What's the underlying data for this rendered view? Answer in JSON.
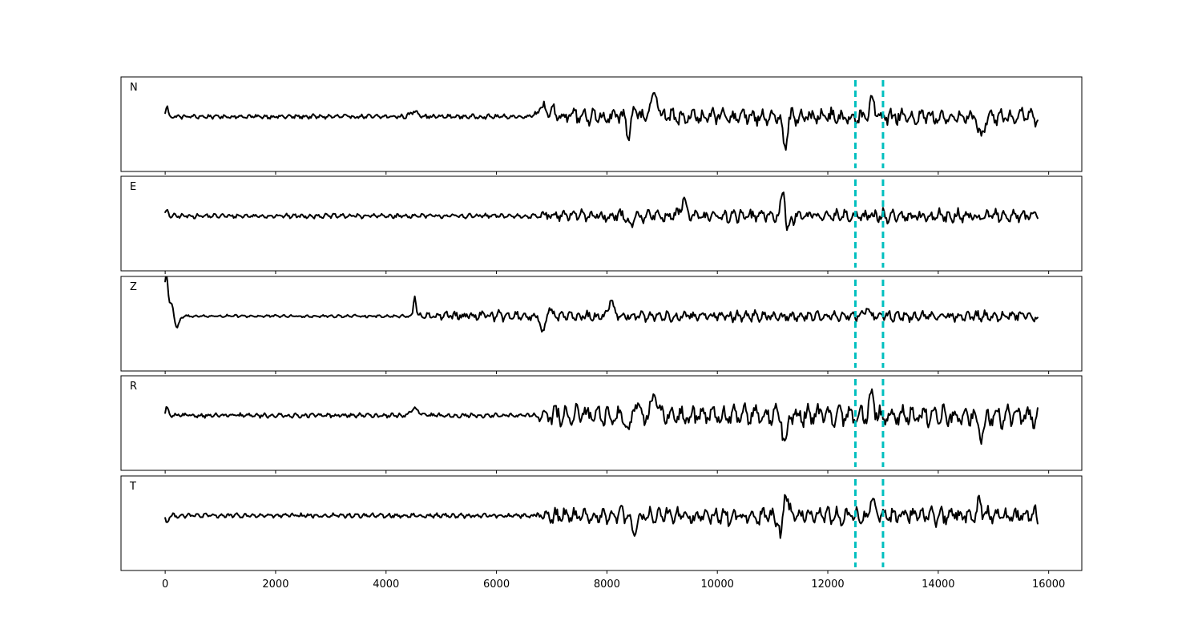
{
  "chart_data": {
    "type": "line",
    "title": "",
    "xlabel": "",
    "ylabel": "",
    "xlim": [
      -800,
      16600
    ],
    "x_ticks": [
      0,
      2000,
      4000,
      6000,
      8000,
      10000,
      12000,
      14000,
      16000
    ],
    "x_tick_labels": [
      "0",
      "2000",
      "4000",
      "6000",
      "8000",
      "10000",
      "12000",
      "14000",
      "16000"
    ],
    "sample_step": 20,
    "x_range": [
      0,
      15800
    ],
    "ylim": [
      -1,
      1
    ],
    "grid": false,
    "legend": "none",
    "trace_color": "#000000",
    "marker_color": "#00bfbf",
    "window_markers": [
      12500,
      13000
    ],
    "panels": [
      {
        "label": "N",
        "base_amplitude": 0.05,
        "events": [
          {
            "x": 30,
            "amp": 0.25,
            "width": 30
          },
          {
            "x": 4520,
            "amp": 0.12,
            "width": 100
          },
          {
            "x": 6850,
            "amp": 0.2,
            "width": 150
          },
          {
            "x": 8420,
            "amp": -0.55,
            "width": 80
          },
          {
            "x": 8480,
            "amp": 0.45,
            "width": 70
          },
          {
            "x": 8860,
            "amp": 0.55,
            "width": 80
          },
          {
            "x": 11220,
            "amp": -0.75,
            "width": 50
          },
          {
            "x": 12800,
            "amp": 0.45,
            "width": 60
          },
          {
            "x": 14780,
            "amp": -0.5,
            "width": 60
          }
        ],
        "bursts": [
          {
            "start": 6600,
            "end": 15800,
            "amp": 0.2,
            "period": 180
          }
        ]
      },
      {
        "label": "E",
        "base_amplitude": 0.05,
        "events": [
          {
            "x": 30,
            "amp": 0.1,
            "width": 40
          },
          {
            "x": 8420,
            "amp": -0.28,
            "width": 60
          },
          {
            "x": 9380,
            "amp": 0.3,
            "width": 80
          },
          {
            "x": 11200,
            "amp": 0.85,
            "width": 50
          },
          {
            "x": 11260,
            "amp": -0.55,
            "width": 60
          }
        ],
        "bursts": [
          {
            "start": 6600,
            "end": 15800,
            "amp": 0.15,
            "period": 170
          }
        ]
      },
      {
        "label": "Z",
        "base_amplitude": 0.03,
        "events": [
          {
            "x": 20,
            "amp": 1.0,
            "width": 40
          },
          {
            "x": 120,
            "amp": 0.35,
            "width": 60
          },
          {
            "x": 200,
            "amp": -0.3,
            "width": 70
          },
          {
            "x": 4520,
            "amp": 0.5,
            "width": 30
          },
          {
            "x": 6850,
            "amp": -0.4,
            "width": 70
          },
          {
            "x": 6950,
            "amp": 0.25,
            "width": 60
          },
          {
            "x": 8070,
            "amp": 0.35,
            "width": 60
          },
          {
            "x": 12700,
            "amp": 0.18,
            "width": 60
          }
        ],
        "bursts": [
          {
            "start": 4400,
            "end": 15800,
            "amp": 0.12,
            "period": 160
          }
        ]
      },
      {
        "label": "R",
        "base_amplitude": 0.05,
        "events": [
          {
            "x": 30,
            "amp": 0.2,
            "width": 30
          },
          {
            "x": 4520,
            "amp": 0.15,
            "width": 100
          },
          {
            "x": 8420,
            "amp": -0.6,
            "width": 70
          },
          {
            "x": 8480,
            "amp": 0.45,
            "width": 80
          },
          {
            "x": 8860,
            "amp": 0.6,
            "width": 60
          },
          {
            "x": 11220,
            "amp": -0.75,
            "width": 50
          },
          {
            "x": 12800,
            "amp": 0.5,
            "width": 60
          },
          {
            "x": 14780,
            "amp": -0.55,
            "width": 60
          }
        ],
        "bursts": [
          {
            "start": 6600,
            "end": 15800,
            "amp": 0.25,
            "period": 190
          }
        ]
      },
      {
        "label": "T",
        "base_amplitude": 0.05,
        "events": [
          {
            "x": 30,
            "amp": -0.15,
            "width": 40
          },
          {
            "x": 8500,
            "amp": -0.35,
            "width": 80
          },
          {
            "x": 11150,
            "amp": -0.75,
            "width": 40
          },
          {
            "x": 11230,
            "amp": 0.55,
            "width": 60
          },
          {
            "x": 12800,
            "amp": 0.45,
            "width": 40
          },
          {
            "x": 14750,
            "amp": 0.35,
            "width": 50
          }
        ],
        "bursts": [
          {
            "start": 6600,
            "end": 15800,
            "amp": 0.2,
            "period": 170
          }
        ]
      }
    ]
  }
}
